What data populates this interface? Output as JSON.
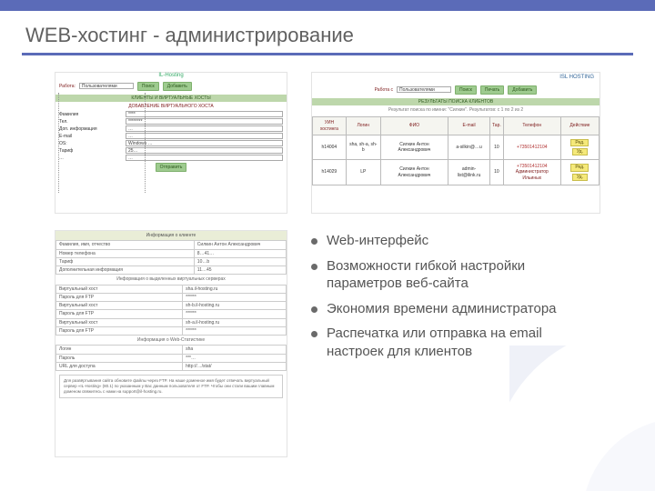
{
  "colors": {
    "accent": "#5b6bb8",
    "button_green": "#9ecb8f",
    "section_green": "#bdd7ab",
    "yellow_btn": "#f5e97a",
    "title_gray": "#606060"
  },
  "title": "WEB-хостинг - администрирование",
  "fig1": {
    "brand": "IL-Hosting",
    "work_label": "Работа:",
    "work_value": "Пользователями",
    "nav": [
      "Поиск",
      "Добавить"
    ],
    "section1": "КЛИЕНТЫ И ВИРТУАЛЬНЫЕ ХОСТЫ",
    "section2": "ДОБАВЛЕНИЕ ВИРТУАЛЬНОГО ХОСТА",
    "fields": [
      {
        "l": "Фамилия",
        "v": "****"
      },
      {
        "l": "Тел.",
        "v": "********"
      },
      {
        "l": "Доп. информация",
        "v": "…"
      },
      {
        "l": "E-mail",
        "v": "…"
      },
      {
        "l": "OS:",
        "v": "Windows …"
      },
      {
        "l": "Тариф",
        "v": "25…"
      },
      {
        "l": "…",
        "v": "…"
      }
    ],
    "submit": "Отправить"
  },
  "fig2": {
    "brand": "ISL HOSTING",
    "work_label": "Работа с",
    "work_value": "Пользователями",
    "nav": [
      "Поиск",
      "Печать",
      "Добавить"
    ],
    "section": "РЕЗУЛЬТАТЫ ПОИСКА КЛИЕНТОВ",
    "caption": "Результат поиска по имени: \"Силкин\". Результатов: с 1 по 2 из 2",
    "columns": [
      "УИН хостинга",
      "Логин",
      "ФИО",
      "E-mail",
      "Тар.",
      "Телефон",
      "Действие"
    ],
    "rows": [
      {
        "uin": "h14004",
        "login": "sha, sh-a, sh-b",
        "fio": "Силкин Антон Александрович",
        "email": "a-silkin@…u",
        "tar": "10",
        "tel": "+73501412104",
        "acts": [
          "Ред.",
          "Уд."
        ]
      },
      {
        "uin": "h14029",
        "login": "LP",
        "fio": "Силкин Антон Александрович",
        "email": "admin-list@ilink.ru",
        "tar": "10",
        "tel": "+73501412104",
        "acts": [
          "Ред.",
          "Уд."
        ],
        "extra": "Администратор Ильиных"
      }
    ]
  },
  "fig3": {
    "hdr1": "Информация о клиенте",
    "rows1": [
      [
        "Фамилия, имя, отчество",
        "Силкин Антон Александрович"
      ],
      [
        "Номер телефона",
        "8…41…"
      ],
      [
        "Тариф",
        "10…b"
      ],
      [
        "Дополнительная информация",
        "11…45"
      ]
    ],
    "cap1": "Информация о выделенных виртуальных серверах",
    "rows2": [
      [
        "Виртуальный хост",
        "sha.il-hosting.ru"
      ],
      [
        "Пароль для FTP",
        "******"
      ],
      [
        "Виртуальный хост",
        "sh-b.il-hosting.ru"
      ],
      [
        "Пароль для FTP",
        "******"
      ],
      [
        "Виртуальный хост",
        "sh-a.il-hosting.ru"
      ],
      [
        "Пароль для FTP",
        "******"
      ]
    ],
    "cap2": "Информация о Web-Статистике",
    "rows3": [
      [
        "Логин",
        "sha"
      ],
      [
        "Пароль",
        "***…"
      ],
      [
        "URL для доступа",
        "http://…/stat/"
      ]
    ],
    "footer": "Для развёртывания сайта обновите файлы через FTP. На наше доменное имя будет отвечать виртуальный сервер «IL-Hosting» (80.1) по указанным у Вас данным пользователя от FTP. Чтобы они стали вашим главным доменом свяжитесь с нами на support@il-hosting.ru."
  },
  "bullets": [
    "Web-интерфейс",
    "Возможности гибкой настройки параметров веб-сайта",
    "Экономия времени администратора",
    "Распечатка или отправка на email настроек для клиентов"
  ]
}
